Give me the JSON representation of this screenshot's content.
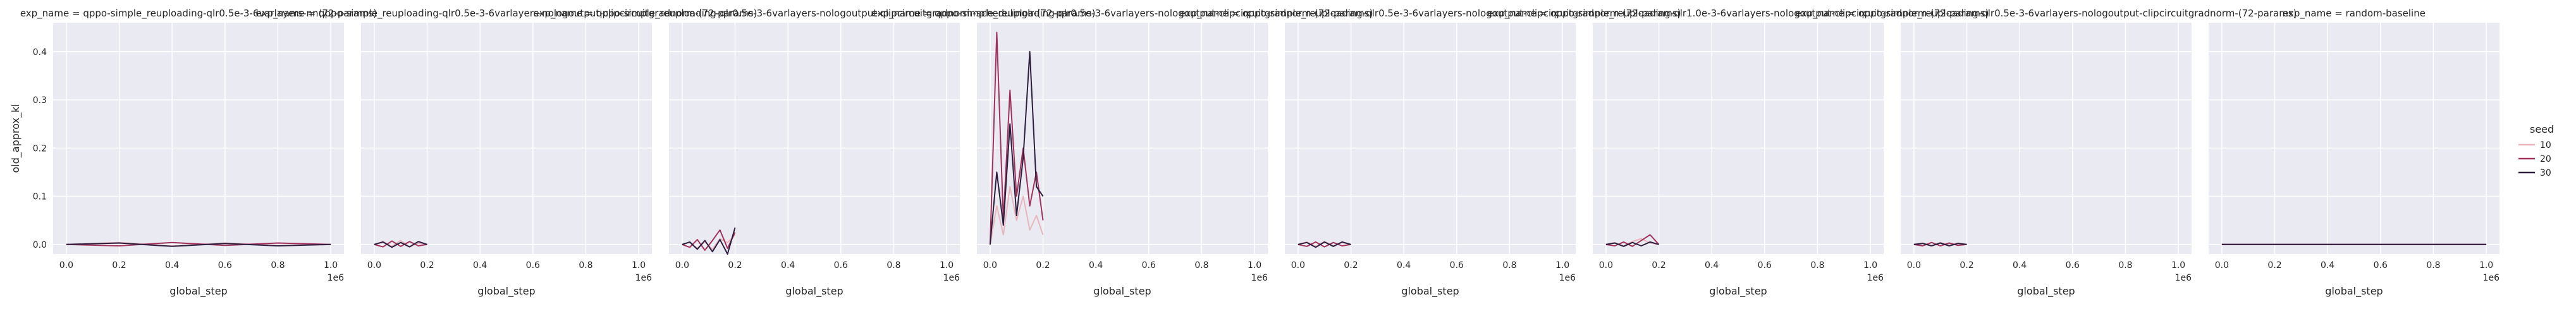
{
  "figure": {
    "ylabel": "old_approx_kl",
    "legend": {
      "title": "seed",
      "entries": [
        {
          "label": "10",
          "color": "#e8b5bd"
        },
        {
          "label": "20",
          "color": "#a1325c"
        },
        {
          "label": "30",
          "color": "#2d1e3e"
        }
      ]
    },
    "colors": {
      "panel_bg": "#eaeaf2",
      "grid": "#ffffff",
      "text": "#262626"
    }
  },
  "chart_data": [
    {
      "type": "line",
      "title": "exp_name = qppo-simple_reuploading-qlr0.5e-3-6varlayers-nn(72-params)",
      "xlabel": "global_step",
      "x_offset_label": "1e6",
      "xticks": [
        0.0,
        0.2,
        0.4,
        0.6,
        0.8,
        1.0
      ],
      "xlim": [
        -0.05,
        1.05
      ],
      "ylim": [
        -0.02,
        0.46
      ],
      "yticks": [
        0.0,
        0.1,
        0.2,
        0.3,
        0.4
      ],
      "grid": true,
      "series": [
        {
          "name": "10",
          "x_range": [
            0.0,
            1.0
          ],
          "values": [
            0.0,
            0.004,
            -0.003,
            0.003,
            -0.002,
            0.0
          ]
        },
        {
          "name": "20",
          "x_range": [
            0.0,
            1.0
          ],
          "values": [
            0.0,
            -0.003,
            0.004,
            -0.002,
            0.003,
            0.0
          ]
        },
        {
          "name": "30",
          "x_range": [
            0.0,
            1.0
          ],
          "values": [
            0.0,
            0.003,
            -0.004,
            0.002,
            -0.003,
            0.0
          ]
        }
      ]
    },
    {
      "type": "line",
      "title": "exp_name = qppo-simple_reuploading-qlr0.5e-3-6varlayers-nologoutput-clipcircuitgradnorm-(72-params)",
      "xlabel": "global_step",
      "x_offset_label": "1e6",
      "xticks": [
        0.0,
        0.2,
        0.4,
        0.6,
        0.8,
        1.0
      ],
      "xlim": [
        -0.05,
        1.05
      ],
      "ylim": [
        -0.02,
        0.46
      ],
      "grid": true,
      "series": [
        {
          "name": "10",
          "x_range": [
            0.0,
            0.2
          ],
          "values": [
            0.0,
            0.006,
            -0.004,
            0.008,
            -0.005,
            0.003,
            0.0
          ]
        },
        {
          "name": "20",
          "x_range": [
            0.0,
            0.2
          ],
          "values": [
            0.0,
            -0.005,
            0.007,
            -0.004,
            0.006,
            -0.003,
            0.0
          ]
        },
        {
          "name": "30",
          "x_range": [
            0.0,
            0.2
          ],
          "values": [
            0.0,
            0.005,
            -0.006,
            0.004,
            -0.005,
            0.006,
            0.0
          ]
        }
      ]
    },
    {
      "type": "line",
      "title": "exp_name = qppo-simple_reuploading-qlr0.5e-3-6varlayers-nologoutput-clipcircuitgradnorm-schedulinglr-(72-params)",
      "xlabel": "global_step",
      "x_offset_label": "1e6",
      "xticks": [
        0.0,
        0.2,
        0.4,
        0.6,
        0.8,
        1.0
      ],
      "xlim": [
        -0.05,
        1.05
      ],
      "ylim": [
        -0.02,
        0.46
      ],
      "grid": true,
      "series": [
        {
          "name": "10",
          "x_range": [
            0.0,
            0.2
          ],
          "values": [
            0.0,
            0.004,
            -0.008,
            0.006,
            -0.01,
            0.012,
            0.004,
            0.02
          ]
        },
        {
          "name": "20",
          "x_range": [
            0.0,
            0.2
          ],
          "values": [
            0.0,
            -0.006,
            0.01,
            -0.012,
            0.008,
            0.03,
            -0.008,
            0.025
          ]
        },
        {
          "name": "30",
          "x_range": [
            0.0,
            0.2
          ],
          "values": [
            0.0,
            0.005,
            -0.01,
            0.008,
            -0.015,
            0.01,
            -0.02,
            0.035
          ]
        }
      ]
    },
    {
      "type": "line",
      "title": "exp_name = qppo-simple_reuploading-qlr0.5e-3-6varlayers-nologoutput-clipcircuitgradnorm-(72-params)",
      "xlabel": "global_step",
      "x_offset_label": "1e6",
      "xticks": [
        0.0,
        0.2,
        0.4,
        0.6,
        0.8,
        1.0
      ],
      "xlim": [
        -0.05,
        1.05
      ],
      "ylim": [
        -0.02,
        0.46
      ],
      "grid": true,
      "series": [
        {
          "name": "10",
          "x_range": [
            0.0,
            0.2
          ],
          "values": [
            0.0,
            0.08,
            0.02,
            0.12,
            0.05,
            0.1,
            0.03,
            0.06,
            0.02
          ]
        },
        {
          "name": "20",
          "x_range": [
            0.0,
            0.2
          ],
          "values": [
            0.0,
            0.44,
            0.05,
            0.32,
            0.1,
            0.2,
            0.08,
            0.15,
            0.05
          ]
        },
        {
          "name": "30",
          "x_range": [
            0.0,
            0.2
          ],
          "values": [
            0.0,
            0.15,
            0.04,
            0.25,
            0.06,
            0.18,
            0.4,
            0.12,
            0.1
          ]
        }
      ]
    },
    {
      "type": "line",
      "title": "exp_name = qppo-simple_reuploading-qlr0.5e-3-6varlayers-nologoutput-clipcircuitgradnorm-(72-params)",
      "xlabel": "global_step",
      "x_offset_label": "1e6",
      "xticks": [
        0.0,
        0.2,
        0.4,
        0.6,
        0.8,
        1.0
      ],
      "xlim": [
        -0.05,
        1.05
      ],
      "ylim": [
        -0.02,
        0.46
      ],
      "grid": true,
      "series": [
        {
          "name": "10",
          "x_range": [
            0.0,
            0.2
          ],
          "values": [
            0.0,
            0.005,
            -0.004,
            0.006,
            -0.003,
            0.004,
            0.0
          ]
        },
        {
          "name": "20",
          "x_range": [
            0.0,
            0.2
          ],
          "values": [
            0.0,
            -0.004,
            0.005,
            -0.005,
            0.004,
            -0.003,
            0.0
          ]
        },
        {
          "name": "30",
          "x_range": [
            0.0,
            0.2
          ],
          "values": [
            0.0,
            0.004,
            -0.006,
            0.005,
            -0.004,
            0.005,
            0.0
          ]
        }
      ]
    },
    {
      "type": "line",
      "title": "exp_name = qppo-simple_reuploading-qlr1.0e-3-6varlayers-nologoutput-clipcircuitgradnorm-(72-params)",
      "xlabel": "global_step",
      "x_offset_label": "1e6",
      "xticks": [
        0.0,
        0.2,
        0.4,
        0.6,
        0.8,
        1.0
      ],
      "xlim": [
        -0.05,
        1.05
      ],
      "ylim": [
        -0.02,
        0.46
      ],
      "grid": true,
      "series": [
        {
          "name": "10",
          "x_range": [
            0.0,
            0.2
          ],
          "values": [
            0.0,
            0.004,
            -0.003,
            0.006,
            0.012,
            0.003,
            0.0
          ]
        },
        {
          "name": "20",
          "x_range": [
            0.0,
            0.2
          ],
          "values": [
            0.0,
            -0.003,
            0.005,
            -0.004,
            0.008,
            0.02,
            0.0
          ]
        },
        {
          "name": "30",
          "x_range": [
            0.0,
            0.2
          ],
          "values": [
            0.0,
            0.003,
            -0.004,
            0.004,
            -0.003,
            0.005,
            0.0
          ]
        }
      ]
    },
    {
      "type": "line",
      "title": "exp_name = qppo-simple_reuploading-qlr0.5e-3-6varlayers-nologoutput-clipcircuitgradnorm-(72-params)",
      "xlabel": "global_step",
      "x_offset_label": "1e6",
      "xticks": [
        0.0,
        0.2,
        0.4,
        0.6,
        0.8,
        1.0
      ],
      "xlim": [
        -0.05,
        1.05
      ],
      "ylim": [
        -0.02,
        0.46
      ],
      "grid": true,
      "series": [
        {
          "name": "10",
          "x_range": [
            0.0,
            0.2
          ],
          "values": [
            0.0,
            0.003,
            -0.003,
            0.004,
            -0.002,
            0.003,
            0.0
          ]
        },
        {
          "name": "20",
          "x_range": [
            0.0,
            0.2
          ],
          "values": [
            0.0,
            -0.003,
            0.004,
            -0.003,
            0.003,
            -0.002,
            0.0
          ]
        },
        {
          "name": "30",
          "x_range": [
            0.0,
            0.2
          ],
          "values": [
            0.0,
            0.002,
            -0.003,
            0.003,
            -0.003,
            0.002,
            0.0
          ]
        }
      ]
    },
    {
      "type": "line",
      "title": "exp_name = random-baseline",
      "xlabel": "global_step",
      "x_offset_label": "1e6",
      "xticks": [
        0.0,
        0.2,
        0.4,
        0.6,
        0.8,
        1.0
      ],
      "xlim": [
        -0.05,
        1.05
      ],
      "ylim": [
        -0.02,
        0.46
      ],
      "grid": true,
      "series": [
        {
          "name": "10",
          "x_range": [
            0.0,
            1.0
          ],
          "values": [
            0.0,
            0.0
          ]
        },
        {
          "name": "20",
          "x_range": [
            0.0,
            1.0
          ],
          "values": [
            0.0,
            0.0
          ]
        },
        {
          "name": "30",
          "x_range": [
            0.0,
            1.0
          ],
          "values": [
            0.0,
            0.0
          ]
        }
      ]
    }
  ]
}
